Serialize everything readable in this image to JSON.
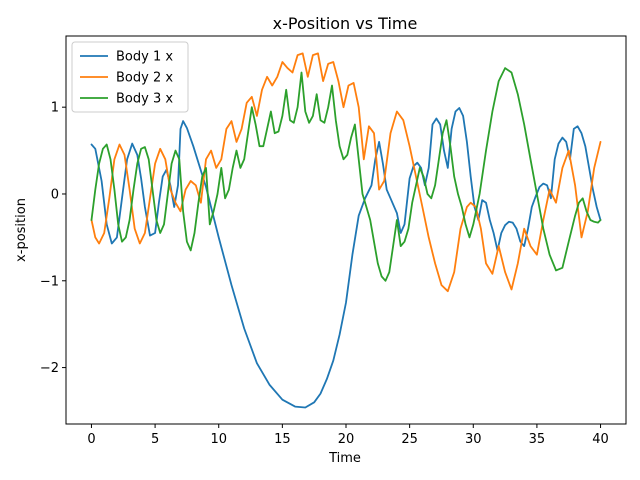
{
  "chart_data": {
    "type": "line",
    "title": "x-Position vs Time",
    "xlabel": "Time",
    "ylabel": "x-position",
    "xlim": [
      -2,
      42
    ],
    "ylim": [
      -2.65,
      1.82
    ],
    "xticks": [
      0,
      5,
      10,
      15,
      20,
      25,
      30,
      35,
      40
    ],
    "yticks": [
      -2,
      -1,
      0,
      1
    ],
    "ytick_labels": [
      "−2",
      "−1",
      "0",
      "1"
    ],
    "grid": false,
    "legend_position": "top-left",
    "series": [
      {
        "name": "Body 1 x",
        "color": "#1f77b4",
        "x": [
          0,
          0.3,
          0.8,
          1.2,
          1.6,
          2.0,
          2.4,
          2.8,
          3.2,
          3.6,
          3.9,
          4.2,
          4.6,
          5.0,
          5.3,
          5.6,
          5.9,
          6.2,
          6.5,
          6.8,
          7.0,
          7.2,
          7.5,
          8,
          9,
          10,
          11,
          12,
          13,
          14,
          15,
          16,
          16.8,
          17.5,
          18,
          18.5,
          19,
          19.5,
          20,
          20.5,
          21,
          21.5,
          22,
          22.3,
          22.6,
          22.9,
          23.2,
          23.5,
          24,
          24.3,
          24.6,
          25,
          25.3,
          25.6,
          25.9,
          26.2,
          26.5,
          26.8,
          27.1,
          27.4,
          27.7,
          28.0,
          28.3,
          28.6,
          28.9,
          29.2,
          29.5,
          29.8,
          30.1,
          30.4,
          30.7,
          31.0,
          31.3,
          31.6,
          31.9,
          32.2,
          32.5,
          32.8,
          33.1,
          33.4,
          33.7,
          34.0,
          34.3,
          34.6,
          34.9,
          35.2,
          35.5,
          35.8,
          36.1,
          36.4,
          36.7,
          37.0,
          37.3,
          37.6,
          37.9,
          38.2,
          38.5,
          38.8,
          39.1,
          39.4,
          39.7,
          40.0
        ],
        "y": [
          0.57,
          0.52,
          0.15,
          -0.35,
          -0.57,
          -0.5,
          -0.05,
          0.4,
          0.58,
          0.45,
          0.18,
          -0.15,
          -0.48,
          -0.45,
          -0.1,
          0.2,
          0.28,
          0.1,
          -0.15,
          0.1,
          0.75,
          0.84,
          0.76,
          0.55,
          0.08,
          -0.5,
          -1.05,
          -1.55,
          -1.95,
          -2.2,
          -2.37,
          -2.45,
          -2.46,
          -2.4,
          -2.3,
          -2.13,
          -1.92,
          -1.62,
          -1.25,
          -0.7,
          -0.25,
          -0.05,
          0.1,
          0.4,
          0.6,
          0.35,
          0.05,
          -0.05,
          -0.22,
          -0.45,
          -0.35,
          0.18,
          0.32,
          0.36,
          0.3,
          0.1,
          0.3,
          0.8,
          0.87,
          0.8,
          0.5,
          0.3,
          0.75,
          0.95,
          0.99,
          0.9,
          0.6,
          0.2,
          -0.15,
          -0.3,
          -0.07,
          -0.1,
          -0.3,
          -0.45,
          -0.65,
          -0.45,
          -0.36,
          -0.32,
          -0.33,
          -0.4,
          -0.55,
          -0.6,
          -0.4,
          -0.15,
          -0.03,
          0.08,
          0.12,
          0.1,
          -0.05,
          0.4,
          0.58,
          0.65,
          0.6,
          0.4,
          0.75,
          0.78,
          0.7,
          0.55,
          0.3,
          0.05,
          -0.15,
          -0.3
        ]
      },
      {
        "name": "Body 2 x",
        "color": "#ff7f0e",
        "x": [
          0,
          0.3,
          0.6,
          1.0,
          1.4,
          1.8,
          2.2,
          2.6,
          3.0,
          3.4,
          3.8,
          4.2,
          4.6,
          5.0,
          5.4,
          5.8,
          6.2,
          6.6,
          7.0,
          7.4,
          7.8,
          8.2,
          8.6,
          9.0,
          9.4,
          9.8,
          10.2,
          10.6,
          11.0,
          11.4,
          11.8,
          12.2,
          12.6,
          13.0,
          13.4,
          13.8,
          14.2,
          14.6,
          15.0,
          15.4,
          15.8,
          16.2,
          16.6,
          17.0,
          17.4,
          17.8,
          18.2,
          18.6,
          19.0,
          19.4,
          19.8,
          20.2,
          20.6,
          21.0,
          21.4,
          21.8,
          22.2,
          22.6,
          23.0,
          23.5,
          24.0,
          24.5,
          25.0,
          25.5,
          26.0,
          26.5,
          27.0,
          27.5,
          28.0,
          28.5,
          29.0,
          29.5,
          29.8,
          30.2,
          30.6,
          31.0,
          31.5,
          32.0,
          32.5,
          33.0,
          33.5,
          34.0,
          34.5,
          35.0,
          35.5,
          36.0,
          36.5,
          37.0,
          37.5,
          38.0,
          38.5,
          39.0,
          39.5,
          40.0
        ],
        "y": [
          -0.3,
          -0.5,
          -0.57,
          -0.45,
          -0.05,
          0.4,
          0.57,
          0.45,
          0.05,
          -0.4,
          -0.57,
          -0.45,
          -0.05,
          0.35,
          0.52,
          0.4,
          0.05,
          -0.1,
          -0.2,
          0.05,
          0.15,
          0.1,
          -0.1,
          0.4,
          0.5,
          0.3,
          0.4,
          0.75,
          0.84,
          0.6,
          0.75,
          1.05,
          1.12,
          0.9,
          1.2,
          1.35,
          1.25,
          1.35,
          1.52,
          1.45,
          1.4,
          1.6,
          1.62,
          1.35,
          1.6,
          1.62,
          1.3,
          1.5,
          1.52,
          1.3,
          1.0,
          1.25,
          1.28,
          1.0,
          0.4,
          0.78,
          0.7,
          0.05,
          0.15,
          0.7,
          0.95,
          0.85,
          0.55,
          0.2,
          -0.15,
          -0.5,
          -0.8,
          -1.05,
          -1.12,
          -0.9,
          -0.4,
          -0.15,
          -0.1,
          -0.15,
          -0.4,
          -0.8,
          -0.92,
          -0.6,
          -0.9,
          -1.1,
          -0.8,
          -0.4,
          -0.6,
          -0.7,
          -0.3,
          0.05,
          -0.1,
          0.3,
          0.5,
          0.1,
          -0.5,
          -0.2,
          0.3,
          0.6
        ]
      },
      {
        "name": "Body 3 x",
        "color": "#2ca02c",
        "x": [
          0,
          0.3,
          0.6,
          0.9,
          1.2,
          1.5,
          1.8,
          2.1,
          2.4,
          2.7,
          3.0,
          3.3,
          3.6,
          3.9,
          4.2,
          4.5,
          4.8,
          5.1,
          5.4,
          5.7,
          6.0,
          6.3,
          6.6,
          6.9,
          7.2,
          7.5,
          7.8,
          8.1,
          8.4,
          8.7,
          9.0,
          9.3,
          9.6,
          9.9,
          10.2,
          10.5,
          10.8,
          11.1,
          11.4,
          11.7,
          12.0,
          12.3,
          12.6,
          12.9,
          13.2,
          13.5,
          13.8,
          14.1,
          14.4,
          14.7,
          15.0,
          15.3,
          15.6,
          15.9,
          16.2,
          16.5,
          16.8,
          17.1,
          17.4,
          17.7,
          18.0,
          18.3,
          18.6,
          18.9,
          19.2,
          19.5,
          19.8,
          20.1,
          20.4,
          20.7,
          21.0,
          21.3,
          21.6,
          21.9,
          22.2,
          22.5,
          22.8,
          23.1,
          23.4,
          23.7,
          24.0,
          24.3,
          24.6,
          24.9,
          25.2,
          25.5,
          25.8,
          26.1,
          26.4,
          26.7,
          27.0,
          27.3,
          27.6,
          27.9,
          28.2,
          28.5,
          28.8,
          29.1,
          29.4,
          29.7,
          30.0,
          30.5,
          31.0,
          31.5,
          32.0,
          32.5,
          33.0,
          33.5,
          34.0,
          34.5,
          35.0,
          35.5,
          36.0,
          36.5,
          37.0,
          37.5,
          38.0,
          38.3,
          38.6,
          38.9,
          39.2,
          39.5,
          39.8,
          40.0
        ],
        "y": [
          -0.3,
          0.05,
          0.35,
          0.52,
          0.57,
          0.4,
          0.05,
          -0.35,
          -0.55,
          -0.5,
          -0.3,
          0.05,
          0.35,
          0.52,
          0.54,
          0.4,
          0.05,
          -0.3,
          -0.45,
          -0.35,
          0.0,
          0.35,
          0.5,
          0.4,
          -0.2,
          -0.55,
          -0.65,
          -0.45,
          -0.1,
          0.2,
          0.3,
          -0.35,
          -0.2,
          0.0,
          0.3,
          -0.05,
          0.05,
          0.3,
          0.5,
          0.3,
          0.4,
          0.7,
          1.0,
          0.8,
          0.55,
          0.55,
          0.75,
          0.95,
          0.7,
          0.72,
          0.9,
          1.2,
          0.85,
          0.82,
          1.0,
          1.4,
          0.95,
          0.82,
          0.9,
          1.15,
          0.85,
          0.82,
          1.0,
          1.25,
          0.85,
          0.55,
          0.4,
          0.45,
          0.65,
          0.8,
          0.4,
          0.0,
          -0.15,
          -0.3,
          -0.55,
          -0.8,
          -0.95,
          -1.0,
          -0.9,
          -0.6,
          -0.3,
          -0.6,
          -0.55,
          -0.4,
          -0.1,
          0.1,
          0.3,
          0.2,
          0.0,
          -0.05,
          0.1,
          0.4,
          0.7,
          0.85,
          0.55,
          0.2,
          0.0,
          -0.15,
          -0.35,
          -0.5,
          -0.35,
          0.0,
          0.5,
          0.95,
          1.3,
          1.45,
          1.4,
          1.15,
          0.8,
          0.4,
          0.0,
          -0.4,
          -0.7,
          -0.88,
          -0.85,
          -0.55,
          -0.25,
          -0.1,
          -0.05,
          -0.2,
          -0.3,
          -0.32,
          -0.33,
          -0.3
        ]
      }
    ]
  }
}
